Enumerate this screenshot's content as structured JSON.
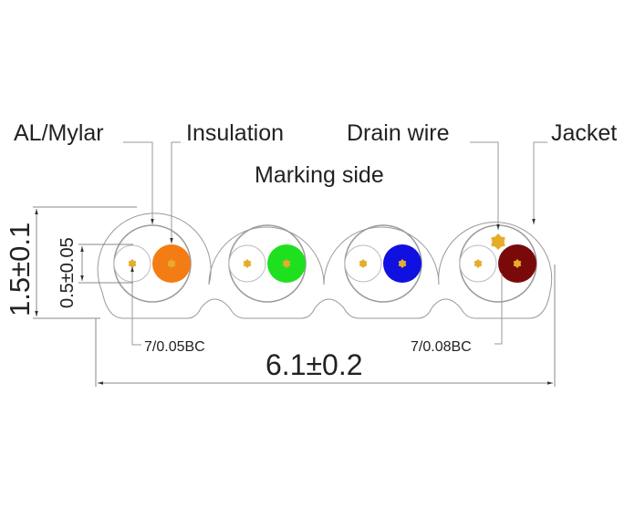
{
  "labels": {
    "al_mylar": "AL/Mylar",
    "insulation": "Insulation",
    "drain_wire": "Drain wire",
    "jacket": "Jacket",
    "marking_side": "Marking side",
    "conductor_signal": "7/0.05BC",
    "conductor_drain": "7/0.08BC"
  },
  "dimensions": {
    "height": "1.5±0.1",
    "pair_height": "0.5±0.05",
    "width": "6.1±0.2"
  },
  "pairs": [
    {
      "color": "#f47c14"
    },
    {
      "color": "#1fe01f"
    },
    {
      "color": "#1010e0"
    },
    {
      "color": "#7a0a0a"
    }
  ],
  "colors": {
    "conductor": "#e6ac2a",
    "outline": "#9a9a9a"
  }
}
